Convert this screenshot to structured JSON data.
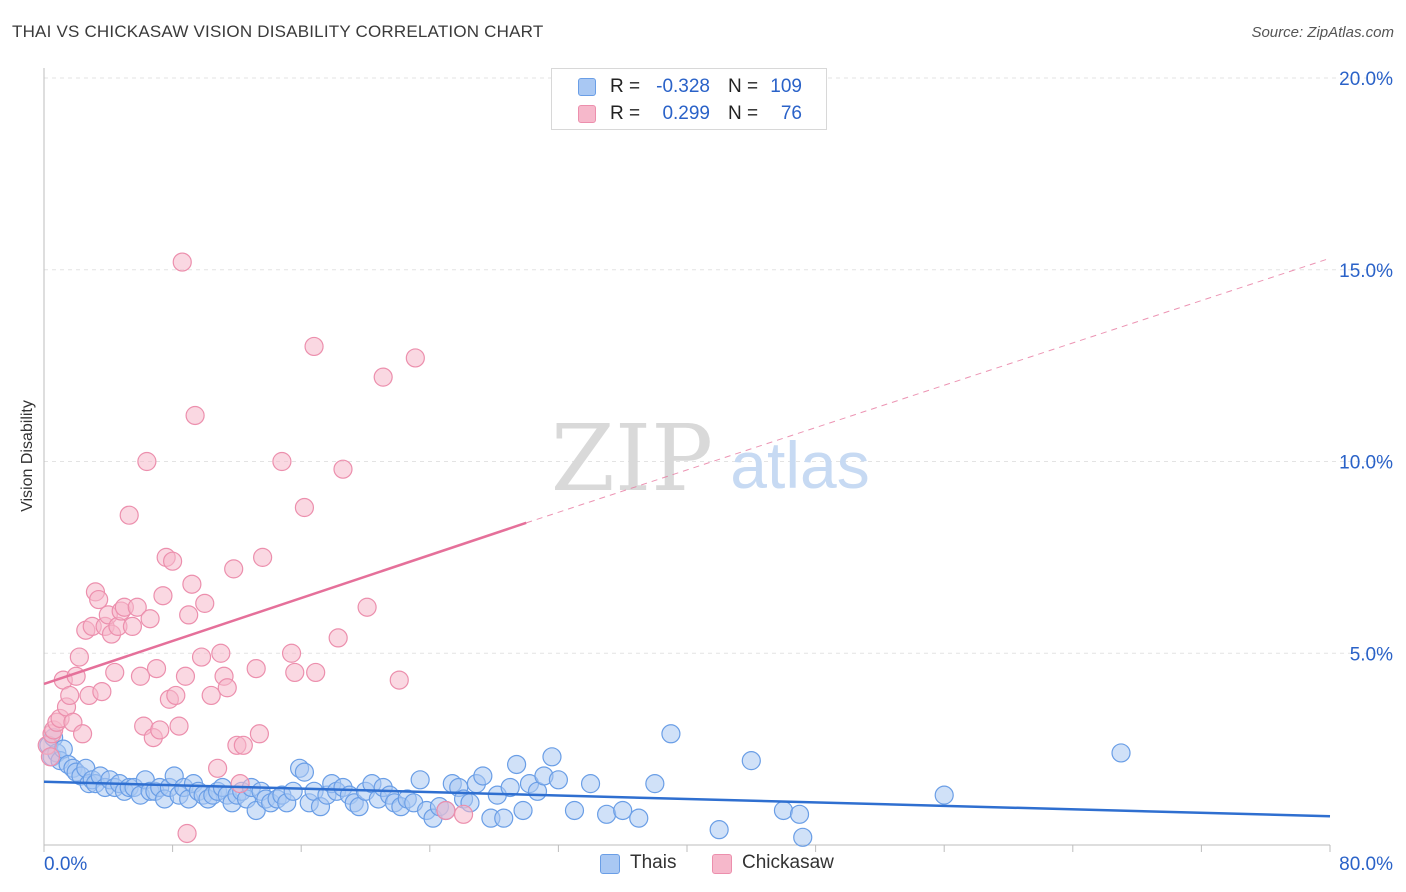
{
  "header": {
    "title": "THAI VS CHICKASAW VISION DISABILITY CORRELATION CHART",
    "source": "Source: ZipAtlas.com"
  },
  "watermark": {
    "zip": "ZIP",
    "atlas": "atlas"
  },
  "legend": {
    "rows": [
      {
        "r_label": "R =",
        "r_value": "-0.328",
        "n_label": "N =",
        "n_value": "109"
      },
      {
        "r_label": "R =",
        "r_value": "0.299",
        "n_label": "N =",
        "n_value": "76"
      }
    ]
  },
  "bottom_legend": {
    "thais": "Thais",
    "chickasaw": "Chickasaw"
  },
  "colors": {
    "thais_fill": "#a9c8f3",
    "thais_stroke": "#6a9ee6",
    "thais_line": "#2f6fd0",
    "chickasaw_fill": "#f6b8cb",
    "chickasaw_stroke": "#ec8fad",
    "chickasaw_line": "#e5709a",
    "tick_label": "#2a62c8",
    "grid": "#e3e3e3"
  },
  "chart_data": {
    "type": "scatter",
    "title": "THAI VS CHICKASAW VISION DISABILITY CORRELATION CHART",
    "xlabel": "",
    "ylabel": "Vision Disability",
    "xlim": [
      0,
      80
    ],
    "ylim": [
      0,
      20
    ],
    "x_tick_labels": [
      {
        "value": 0,
        "label": "0.0%"
      },
      {
        "value": 80,
        "label": "80.0%"
      }
    ],
    "y_tick_labels": [
      {
        "value": 5,
        "label": "5.0%"
      },
      {
        "value": 10,
        "label": "10.0%"
      },
      {
        "value": 15,
        "label": "15.0%"
      },
      {
        "value": 20,
        "label": "20.0%"
      }
    ],
    "series": [
      {
        "name": "Thais",
        "r": -0.328,
        "n": 109,
        "trend": {
          "x": [
            0,
            80
          ],
          "y": [
            1.65,
            0.75
          ]
        },
        "points": [
          [
            0.3,
            2.6
          ],
          [
            0.5,
            2.3
          ],
          [
            0.6,
            2.8
          ],
          [
            0.8,
            2.4
          ],
          [
            1.0,
            2.2
          ],
          [
            1.2,
            2.5
          ],
          [
            1.5,
            2.1
          ],
          [
            1.8,
            2.0
          ],
          [
            2.0,
            1.9
          ],
          [
            2.3,
            1.8
          ],
          [
            2.6,
            2.0
          ],
          [
            2.8,
            1.6
          ],
          [
            3.0,
            1.7
          ],
          [
            3.2,
            1.6
          ],
          [
            3.5,
            1.8
          ],
          [
            3.8,
            1.5
          ],
          [
            4.1,
            1.7
          ],
          [
            4.4,
            1.5
          ],
          [
            4.7,
            1.6
          ],
          [
            5.0,
            1.4
          ],
          [
            5.3,
            1.5
          ],
          [
            5.6,
            1.5
          ],
          [
            6.0,
            1.3
          ],
          [
            6.3,
            1.7
          ],
          [
            6.6,
            1.4
          ],
          [
            6.9,
            1.4
          ],
          [
            7.2,
            1.5
          ],
          [
            7.5,
            1.2
          ],
          [
            7.8,
            1.5
          ],
          [
            8.1,
            1.8
          ],
          [
            8.4,
            1.3
          ],
          [
            8.7,
            1.5
          ],
          [
            9.0,
            1.2
          ],
          [
            9.3,
            1.6
          ],
          [
            9.6,
            1.4
          ],
          [
            9.9,
            1.3
          ],
          [
            10.2,
            1.2
          ],
          [
            10.5,
            1.3
          ],
          [
            10.8,
            1.4
          ],
          [
            11.1,
            1.5
          ],
          [
            11.4,
            1.3
          ],
          [
            11.7,
            1.1
          ],
          [
            12.0,
            1.3
          ],
          [
            12.3,
            1.4
          ],
          [
            12.6,
            1.2
          ],
          [
            12.9,
            1.5
          ],
          [
            13.2,
            0.9
          ],
          [
            13.5,
            1.4
          ],
          [
            13.8,
            1.2
          ],
          [
            14.1,
            1.1
          ],
          [
            14.5,
            1.2
          ],
          [
            14.8,
            1.3
          ],
          [
            15.1,
            1.1
          ],
          [
            15.5,
            1.4
          ],
          [
            15.9,
            2.0
          ],
          [
            16.2,
            1.9
          ],
          [
            16.5,
            1.1
          ],
          [
            16.8,
            1.4
          ],
          [
            17.2,
            1.0
          ],
          [
            17.6,
            1.3
          ],
          [
            17.9,
            1.6
          ],
          [
            18.2,
            1.4
          ],
          [
            18.6,
            1.5
          ],
          [
            19.0,
            1.3
          ],
          [
            19.3,
            1.1
          ],
          [
            19.6,
            1.0
          ],
          [
            20.0,
            1.4
          ],
          [
            20.4,
            1.6
          ],
          [
            20.8,
            1.2
          ],
          [
            21.1,
            1.5
          ],
          [
            21.5,
            1.3
          ],
          [
            21.8,
            1.1
          ],
          [
            22.2,
            1.0
          ],
          [
            22.6,
            1.2
          ],
          [
            23.0,
            1.1
          ],
          [
            23.4,
            1.7
          ],
          [
            23.8,
            0.9
          ],
          [
            24.2,
            0.7
          ],
          [
            24.6,
            1.0
          ],
          [
            25.0,
            0.9
          ],
          [
            25.4,
            1.6
          ],
          [
            25.8,
            1.5
          ],
          [
            26.1,
            1.2
          ],
          [
            26.5,
            1.1
          ],
          [
            26.9,
            1.6
          ],
          [
            27.3,
            1.8
          ],
          [
            27.8,
            0.7
          ],
          [
            28.2,
            1.3
          ],
          [
            28.6,
            0.7
          ],
          [
            29.0,
            1.5
          ],
          [
            29.4,
            2.1
          ],
          [
            29.8,
            0.9
          ],
          [
            30.2,
            1.6
          ],
          [
            30.7,
            1.4
          ],
          [
            31.1,
            1.8
          ],
          [
            31.6,
            2.3
          ],
          [
            32.0,
            1.7
          ],
          [
            33.0,
            0.9
          ],
          [
            34.0,
            1.6
          ],
          [
            35.0,
            0.8
          ],
          [
            36.0,
            0.9
          ],
          [
            37.0,
            0.7
          ],
          [
            38.0,
            1.6
          ],
          [
            39.0,
            2.9
          ],
          [
            42.0,
            0.4
          ],
          [
            44.0,
            2.2
          ],
          [
            46.0,
            0.9
          ],
          [
            47.0,
            0.8
          ],
          [
            47.2,
            0.2
          ],
          [
            56.0,
            1.3
          ],
          [
            67.0,
            2.4
          ]
        ]
      },
      {
        "name": "Chickasaw",
        "r": 0.299,
        "n": 76,
        "trend": {
          "x": [
            0,
            30
          ],
          "y": [
            4.2,
            8.4
          ],
          "dashed_x": [
            30,
            80
          ],
          "dashed_y": [
            8.4,
            15.3
          ]
        },
        "points": [
          [
            0.2,
            2.6
          ],
          [
            0.4,
            2.3
          ],
          [
            0.5,
            2.9
          ],
          [
            0.6,
            3.0
          ],
          [
            0.8,
            3.2
          ],
          [
            1.0,
            3.3
          ],
          [
            1.2,
            4.3
          ],
          [
            1.4,
            3.6
          ],
          [
            1.6,
            3.9
          ],
          [
            1.8,
            3.2
          ],
          [
            2.0,
            4.4
          ],
          [
            2.2,
            4.9
          ],
          [
            2.4,
            2.9
          ],
          [
            2.6,
            5.6
          ],
          [
            2.8,
            3.9
          ],
          [
            3.0,
            5.7
          ],
          [
            3.2,
            6.6
          ],
          [
            3.4,
            6.4
          ],
          [
            3.6,
            4.0
          ],
          [
            3.8,
            5.7
          ],
          [
            4.0,
            6.0
          ],
          [
            4.2,
            5.5
          ],
          [
            4.4,
            4.5
          ],
          [
            4.6,
            5.7
          ],
          [
            4.8,
            6.1
          ],
          [
            5.0,
            6.2
          ],
          [
            5.3,
            8.6
          ],
          [
            5.5,
            5.7
          ],
          [
            5.8,
            6.2
          ],
          [
            6.0,
            4.4
          ],
          [
            6.2,
            3.1
          ],
          [
            6.4,
            10.0
          ],
          [
            6.6,
            5.9
          ],
          [
            6.8,
            2.8
          ],
          [
            7.0,
            4.6
          ],
          [
            7.2,
            3.0
          ],
          [
            7.4,
            6.5
          ],
          [
            7.6,
            7.5
          ],
          [
            7.8,
            3.8
          ],
          [
            8.0,
            7.4
          ],
          [
            8.2,
            3.9
          ],
          [
            8.4,
            3.1
          ],
          [
            8.6,
            15.2
          ],
          [
            8.8,
            4.4
          ],
          [
            8.9,
            0.3
          ],
          [
            9.0,
            6.0
          ],
          [
            9.2,
            6.8
          ],
          [
            9.4,
            11.2
          ],
          [
            9.8,
            4.9
          ],
          [
            10.0,
            6.3
          ],
          [
            10.4,
            3.9
          ],
          [
            10.8,
            2.0
          ],
          [
            11.0,
            5.0
          ],
          [
            11.2,
            4.4
          ],
          [
            11.4,
            4.1
          ],
          [
            11.8,
            7.2
          ],
          [
            12.0,
            2.6
          ],
          [
            12.2,
            1.6
          ],
          [
            12.4,
            2.6
          ],
          [
            13.2,
            4.6
          ],
          [
            13.4,
            2.9
          ],
          [
            13.6,
            7.5
          ],
          [
            14.8,
            10.0
          ],
          [
            15.4,
            5.0
          ],
          [
            15.6,
            4.5
          ],
          [
            16.2,
            8.8
          ],
          [
            16.8,
            13.0
          ],
          [
            16.9,
            4.5
          ],
          [
            18.3,
            5.4
          ],
          [
            18.6,
            9.8
          ],
          [
            20.1,
            6.2
          ],
          [
            21.1,
            12.2
          ],
          [
            22.1,
            4.3
          ],
          [
            23.1,
            12.7
          ],
          [
            25.0,
            0.9
          ],
          [
            26.1,
            0.8
          ]
        ]
      }
    ],
    "grid": true,
    "legend_placement": "top-center"
  }
}
